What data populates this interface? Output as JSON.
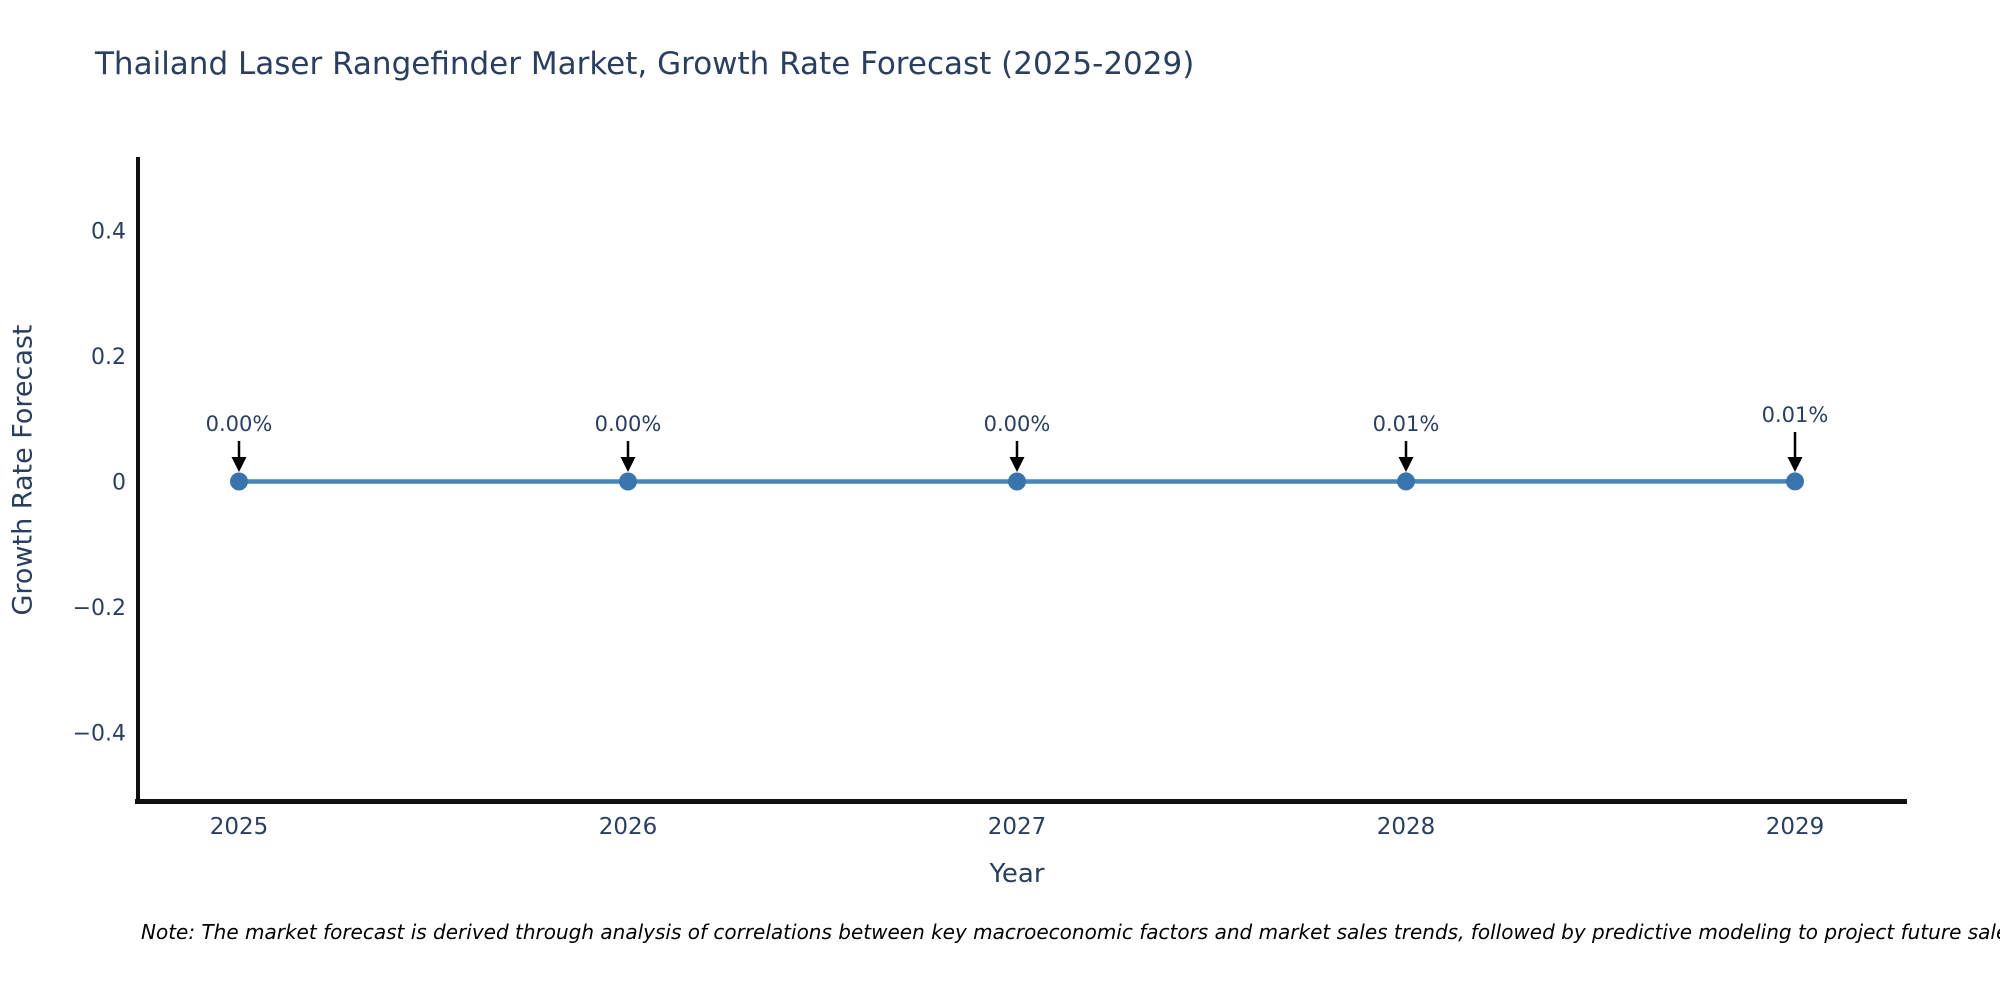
{
  "chart": {
    "title": "Thailand Laser Rangefinder Market, Growth Rate Forecast (2025-2029)",
    "x_axis_title": "Year",
    "y_axis_title": "Growth Rate Forecast",
    "note": "Note: The market forecast is derived through analysis of correlations between key macroeconomic factors and market sales trends, followed by predictive modeling to project future sales."
  },
  "chart_data": {
    "type": "line",
    "title": "Thailand Laser Rangefinder Market, Growth Rate Forecast (2025-2029)",
    "xlabel": "Year",
    "ylabel": "Growth Rate Forecast",
    "x": [
      2025,
      2026,
      2027,
      2028,
      2029
    ],
    "x_tick_labels": [
      "2025",
      "2026",
      "2027",
      "2028",
      "2029"
    ],
    "series": [
      {
        "name": "Growth Rate Forecast",
        "values": [
          0.0,
          0.0,
          0.0,
          0.0001,
          0.0001
        ]
      }
    ],
    "point_labels": [
      "0.00%",
      "0.00%",
      "0.00%",
      "0.01%",
      "0.01%"
    ],
    "y_ticks": [
      0.4,
      0.2,
      0,
      -0.2,
      -0.4
    ],
    "y_tick_labels": [
      "0.4",
      "0.2",
      "0",
      "−0.2",
      "−0.4"
    ],
    "ylim": [
      -0.512,
      0.512
    ],
    "grid": false,
    "legend": "none",
    "annotation_dy": [
      0,
      0,
      0,
      0,
      -9
    ],
    "colors": {
      "line": "#4487bd",
      "marker": "#3a74ad",
      "axis": "#111111",
      "tick_text": "#2a3f5f",
      "annotation_text": "#2a3f5f",
      "arrow": "#000000",
      "title_text": "#2a3f5f",
      "note_text": "#000000",
      "background": "#ffffff"
    }
  }
}
